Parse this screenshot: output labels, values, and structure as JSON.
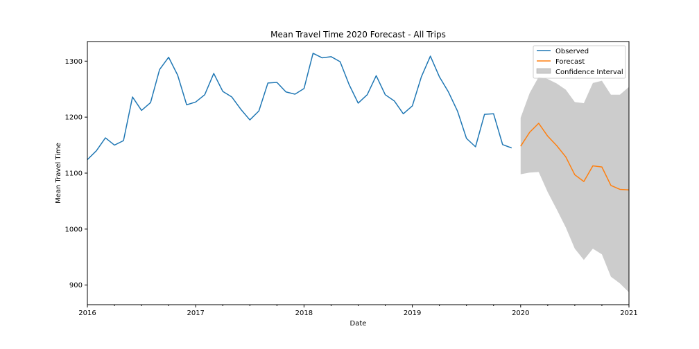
{
  "chart_data": {
    "type": "line",
    "title": "Mean Travel Time 2020 Forecast - All Trips",
    "xlabel": "Date",
    "ylabel": "Mean Travel Time",
    "xlim": [
      "2016-01",
      "2021-01"
    ],
    "ylim": [
      865,
      1335
    ],
    "x_ticks": [
      "2016",
      "2017",
      "2018",
      "2019",
      "2020",
      "2021"
    ],
    "y_ticks": [
      900,
      1000,
      1100,
      1200,
      1300
    ],
    "legend_position": "top-right",
    "series": [
      {
        "name": "Observed",
        "color": "#1f77b4",
        "x": [
          "2016-01",
          "2016-02",
          "2016-03",
          "2016-04",
          "2016-05",
          "2016-06",
          "2016-07",
          "2016-08",
          "2016-09",
          "2016-10",
          "2016-11",
          "2016-12",
          "2017-01",
          "2017-02",
          "2017-03",
          "2017-04",
          "2017-05",
          "2017-06",
          "2017-07",
          "2017-08",
          "2017-09",
          "2017-10",
          "2017-11",
          "2017-12",
          "2018-01",
          "2018-02",
          "2018-03",
          "2018-04",
          "2018-05",
          "2018-06",
          "2018-07",
          "2018-08",
          "2018-09",
          "2018-10",
          "2018-11",
          "2018-12",
          "2019-01",
          "2019-02",
          "2019-03",
          "2019-04",
          "2019-05",
          "2019-06",
          "2019-07",
          "2019-08",
          "2019-09",
          "2019-10",
          "2019-11",
          "2019-12"
        ],
        "values": [
          1124,
          1140,
          1163,
          1150,
          1158,
          1236,
          1212,
          1226,
          1285,
          1307,
          1275,
          1222,
          1227,
          1240,
          1278,
          1246,
          1236,
          1214,
          1195,
          1211,
          1261,
          1262,
          1245,
          1241,
          1251,
          1314,
          1306,
          1308,
          1299,
          1258,
          1225,
          1240,
          1274,
          1240,
          1229,
          1206,
          1220,
          1272,
          1309,
          1272,
          1245,
          1211,
          1162,
          1147,
          1205,
          1206,
          1151,
          1145
        ]
      },
      {
        "name": "Forecast",
        "color": "#ff7f0e",
        "x": [
          "2020-01",
          "2020-02",
          "2020-03",
          "2020-04",
          "2020-05",
          "2020-06",
          "2020-07",
          "2020-08",
          "2020-09",
          "2020-10",
          "2020-11",
          "2020-12",
          "2021-01"
        ],
        "values": [
          1148,
          1173,
          1189,
          1166,
          1149,
          1129,
          1097,
          1085,
          1113,
          1111,
          1078,
          1071,
          1070
        ]
      }
    ],
    "confidence_interval": {
      "name": "Confidence Interval",
      "color": "#cccccc",
      "x": [
        "2020-01",
        "2020-02",
        "2020-03",
        "2020-04",
        "2020-05",
        "2020-06",
        "2020-07",
        "2020-08",
        "2020-09",
        "2020-10",
        "2020-11",
        "2020-12",
        "2021-01"
      ],
      "upper": [
        1199,
        1243,
        1272,
        1268,
        1260,
        1249,
        1227,
        1225,
        1261,
        1265,
        1240,
        1240,
        1254
      ],
      "lower": [
        1098,
        1101,
        1102,
        1066,
        1035,
        1003,
        965,
        945,
        965,
        955,
        915,
        903,
        887
      ]
    }
  }
}
